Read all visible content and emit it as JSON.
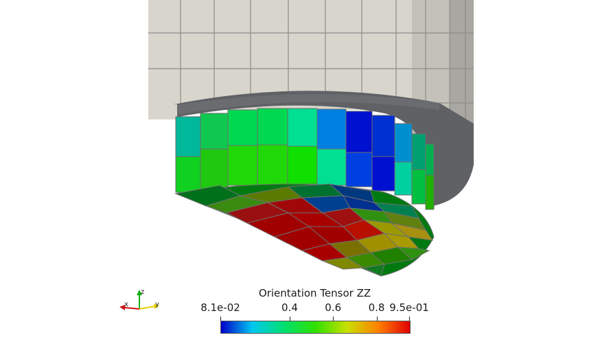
{
  "legend": {
    "title": "Orientation Tensor ZZ",
    "ticks": [
      {
        "label": "8.1e-02",
        "value": 0.081
      },
      {
        "label": "0.4",
        "value": 0.4
      },
      {
        "label": "0.6",
        "value": 0.6
      },
      {
        "label": "0.8",
        "value": 0.8
      },
      {
        "label": "9.5e-01",
        "value": 0.95
      }
    ],
    "range": [
      0.081,
      0.95
    ],
    "colormap": [
      "#0000c8",
      "#00c8f0",
      "#00e070",
      "#30e000",
      "#c8e000",
      "#ff8000",
      "#e00000"
    ]
  },
  "axes": {
    "x_label": "x",
    "y_label": "y",
    "z_label": "z",
    "x_color": "#d01010",
    "y_color": "#e8d000",
    "z_color": "#10b010"
  },
  "colors": {
    "background": "#ffffff",
    "mesh_grey": "#d6d3cb",
    "mesh_dark": "#5a5c60",
    "edge": "#8a8a8a"
  }
}
